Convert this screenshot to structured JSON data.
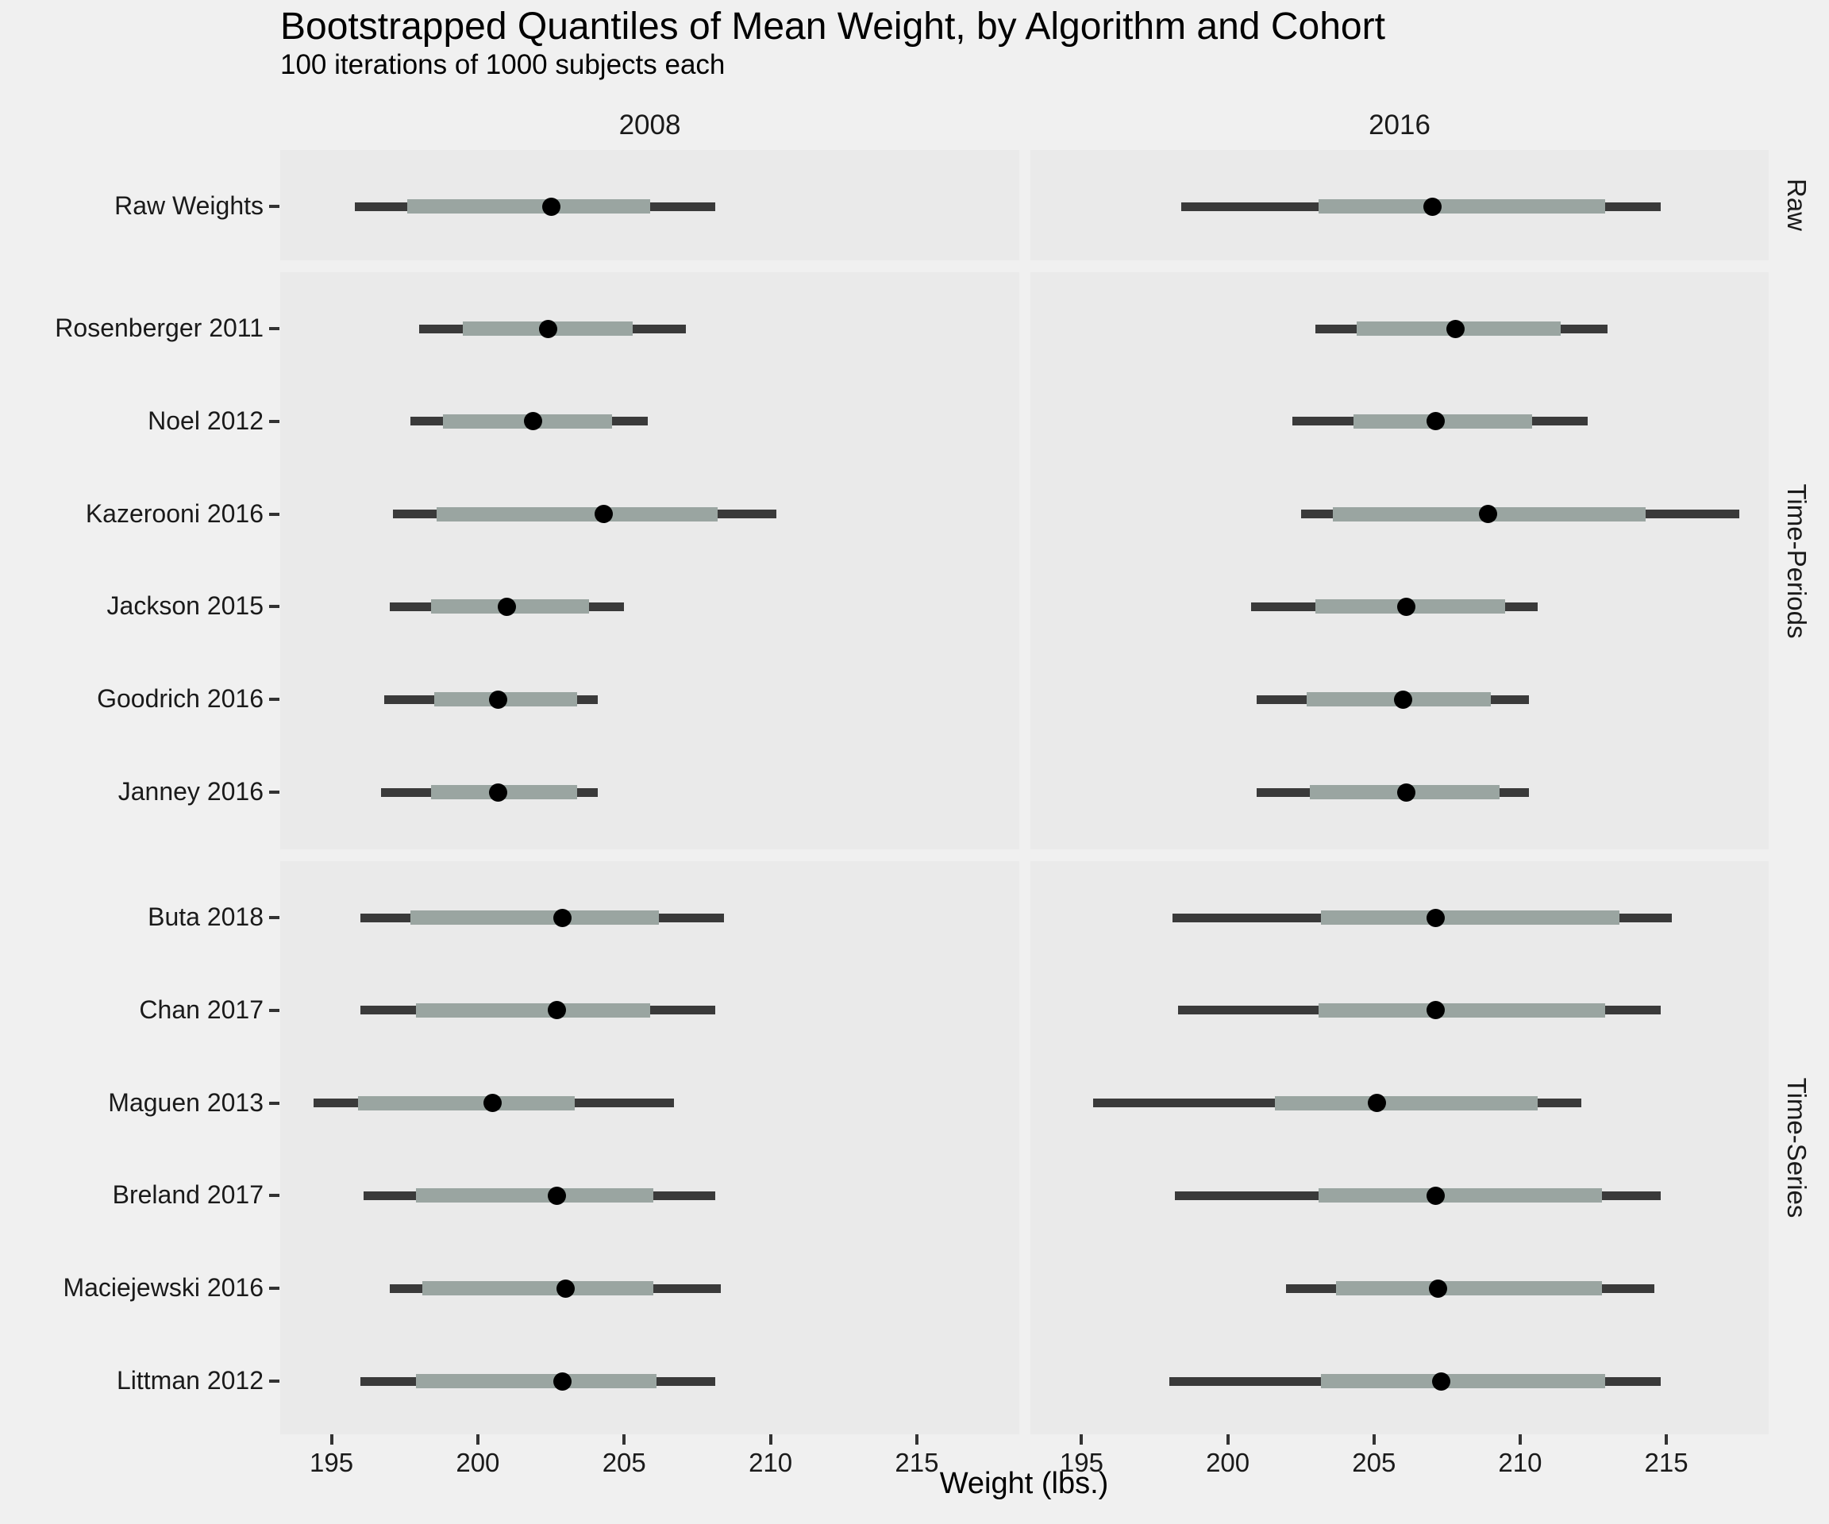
{
  "chart_data": {
    "type": "scatter",
    "variant": "point-interval (bootstrapped quantile intervals: outer line, inner band, median dot)",
    "title": "Bootstrapped Quantiles of Mean Weight, by Algorithm and Cohort",
    "subtitle": "100 iterations of 1000 subjects each",
    "xlabel": "Weight (lbs.)",
    "x_ticks": [
      195,
      200,
      205,
      210,
      215
    ],
    "x_domain": [
      193.25,
      218.5
    ],
    "grid": "off",
    "cohorts": [
      "2008",
      "2016"
    ],
    "interval_levels": [
      "outer_low",
      "inner_low",
      "median",
      "inner_high",
      "outer_high"
    ],
    "facets": [
      {
        "label": "Raw",
        "algorithms": [
          {
            "name": "Raw Weights",
            "cohort_2008": [
              195.8,
              197.6,
              202.5,
              205.9,
              208.1
            ],
            "cohort_2016": [
              198.4,
              203.1,
              207.0,
              212.9,
              214.8
            ]
          }
        ]
      },
      {
        "label": "Time-Periods",
        "algorithms": [
          {
            "name": "Rosenberger 2011",
            "cohort_2008": [
              198.0,
              199.5,
              202.4,
              205.3,
              207.1
            ],
            "cohort_2016": [
              203.0,
              204.4,
              207.8,
              211.4,
              213.0
            ]
          },
          {
            "name": "Noel 2012",
            "cohort_2008": [
              197.7,
              198.8,
              201.9,
              204.6,
              205.8
            ],
            "cohort_2016": [
              202.2,
              204.3,
              207.1,
              210.4,
              212.3
            ]
          },
          {
            "name": "Kazerooni 2016",
            "cohort_2008": [
              197.1,
              198.6,
              204.3,
              208.2,
              210.2
            ],
            "cohort_2016": [
              202.5,
              203.6,
              208.9,
              214.3,
              217.5
            ]
          },
          {
            "name": "Jackson 2015",
            "cohort_2008": [
              197.0,
              198.4,
              201.0,
              203.8,
              205.0
            ],
            "cohort_2016": [
              200.8,
              203.0,
              206.1,
              209.5,
              210.6
            ]
          },
          {
            "name": "Goodrich 2016",
            "cohort_2008": [
              196.8,
              198.5,
              200.7,
              203.4,
              204.1
            ],
            "cohort_2016": [
              201.0,
              202.7,
              206.0,
              209.0,
              210.3
            ]
          },
          {
            "name": "Janney 2016",
            "cohort_2008": [
              196.7,
              198.4,
              200.7,
              203.4,
              204.1
            ],
            "cohort_2016": [
              201.0,
              202.8,
              206.1,
              209.3,
              210.3
            ]
          }
        ]
      },
      {
        "label": "Time-Series",
        "algorithms": [
          {
            "name": "Buta 2018",
            "cohort_2008": [
              196.0,
              197.7,
              202.9,
              206.2,
              208.4
            ],
            "cohort_2016": [
              198.1,
              203.2,
              207.1,
              213.4,
              215.2
            ]
          },
          {
            "name": "Chan 2017",
            "cohort_2008": [
              196.0,
              197.9,
              202.7,
              205.9,
              208.1
            ],
            "cohort_2016": [
              198.3,
              203.1,
              207.1,
              212.9,
              214.8
            ]
          },
          {
            "name": "Maguen 2013",
            "cohort_2008": [
              194.4,
              195.9,
              200.5,
              203.3,
              206.7
            ],
            "cohort_2016": [
              195.4,
              201.6,
              205.1,
              210.6,
              212.1
            ]
          },
          {
            "name": "Breland 2017",
            "cohort_2008": [
              196.1,
              197.9,
              202.7,
              206.0,
              208.1
            ],
            "cohort_2016": [
              198.2,
              203.1,
              207.1,
              212.8,
              214.8
            ]
          },
          {
            "name": "Maciejewski 2016",
            "cohort_2008": [
              197.0,
              198.1,
              203.0,
              206.0,
              208.3
            ],
            "cohort_2016": [
              202.0,
              203.7,
              207.2,
              212.8,
              214.6
            ]
          },
          {
            "name": "Littman 2012",
            "cohort_2008": [
              196.0,
              197.9,
              202.9,
              206.1,
              208.1
            ],
            "cohort_2016": [
              198.0,
              203.2,
              207.3,
              212.9,
              214.8
            ]
          }
        ]
      }
    ]
  },
  "colors": {
    "page_bg": "#F0F0F0",
    "panel_bg": "#EAEAEA",
    "outer_interval": "#3A3A3A",
    "inner_interval": "#9AA5A1",
    "median_point": "#000000",
    "text": "#000000",
    "tick": "#333333"
  }
}
